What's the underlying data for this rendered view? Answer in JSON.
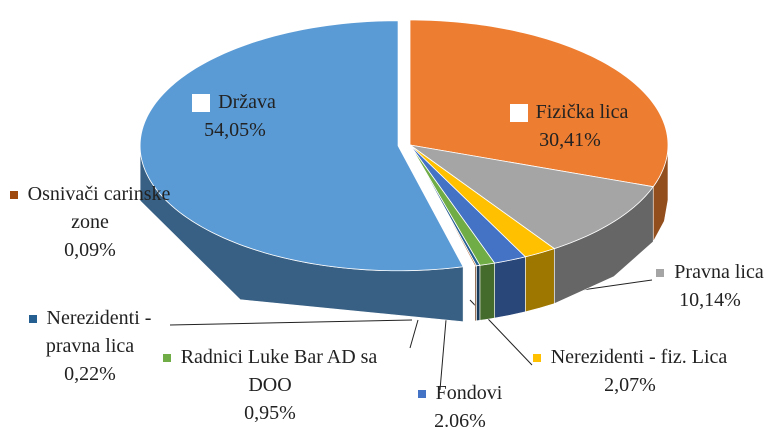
{
  "chart_data": {
    "type": "pie3d",
    "series": [
      {
        "name": "Država",
        "color": "#5b9bd5",
        "value": 54.05,
        "value_label": "54,05%"
      },
      {
        "name": "Fizička lica",
        "color": "#ed7d31",
        "value": 30.41,
        "value_label": "30,41%"
      },
      {
        "name": "Pravna lica",
        "color": "#a5a5a5",
        "value": 10.14,
        "value_label": "10,14%"
      },
      {
        "name": "Nerezidenti - fiz. Lica",
        "color": "#ffc000",
        "value": 2.07,
        "value_label": "2,07%"
      },
      {
        "name": "Fondovi",
        "color": "#4472c4",
        "value": 2.06,
        "value_label": "2.06%"
      },
      {
        "name": "Radnici Luke Bar AD sa DOO",
        "color": "#70ad47",
        "value": 0.95,
        "value_label": "0,95%"
      },
      {
        "name": "Nerezidenti - pravna lica",
        "color": "#255e91",
        "value": 0.22,
        "value_label": "0,22%"
      },
      {
        "name": "Osnivači carinske zone",
        "color": "#9e480e",
        "value": 0.09,
        "value_label": "0,09%"
      }
    ]
  }
}
